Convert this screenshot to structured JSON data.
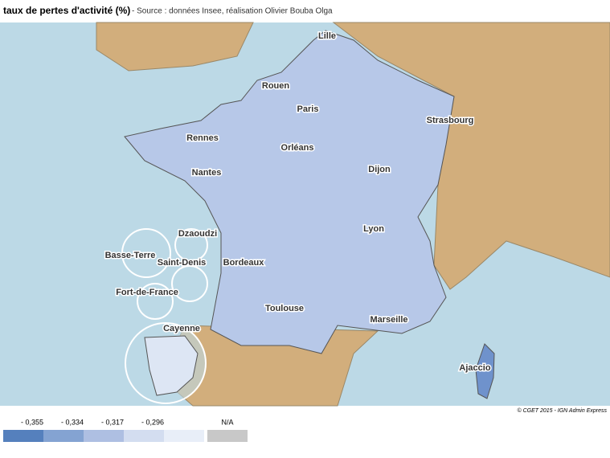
{
  "header": {
    "title": "taux de pertes d'activité (%)",
    "source": "- Source : données Insee, réalisation Olivier Bouba Olga"
  },
  "map": {
    "cities": [
      "Lille",
      "Rouen",
      "Paris",
      "Strasbourg",
      "Rennes",
      "Orléans",
      "Nantes",
      "Dijon",
      "Lyon",
      "Bordeaux",
      "Toulouse",
      "Marseille",
      "Ajaccio",
      "Dzaoudzi",
      "Basse-Terre",
      "Saint-Denis",
      "Fort-de-France",
      "Cayenne"
    ],
    "credit": "© CGET 2015 - IGN Admin Express"
  },
  "legend": {
    "items": [
      {
        "label": "- 0,355",
        "color": "#5580bd"
      },
      {
        "label": "- 0,334",
        "color": "#84a3d2"
      },
      {
        "label": "- 0,317",
        "color": "#aebfe2"
      },
      {
        "label": "- 0,296",
        "color": "#d3ddf0"
      },
      {
        "label": "",
        "color": "#e8eef8"
      },
      {
        "label": "N/A",
        "color": "#c8c8c8"
      }
    ]
  }
}
